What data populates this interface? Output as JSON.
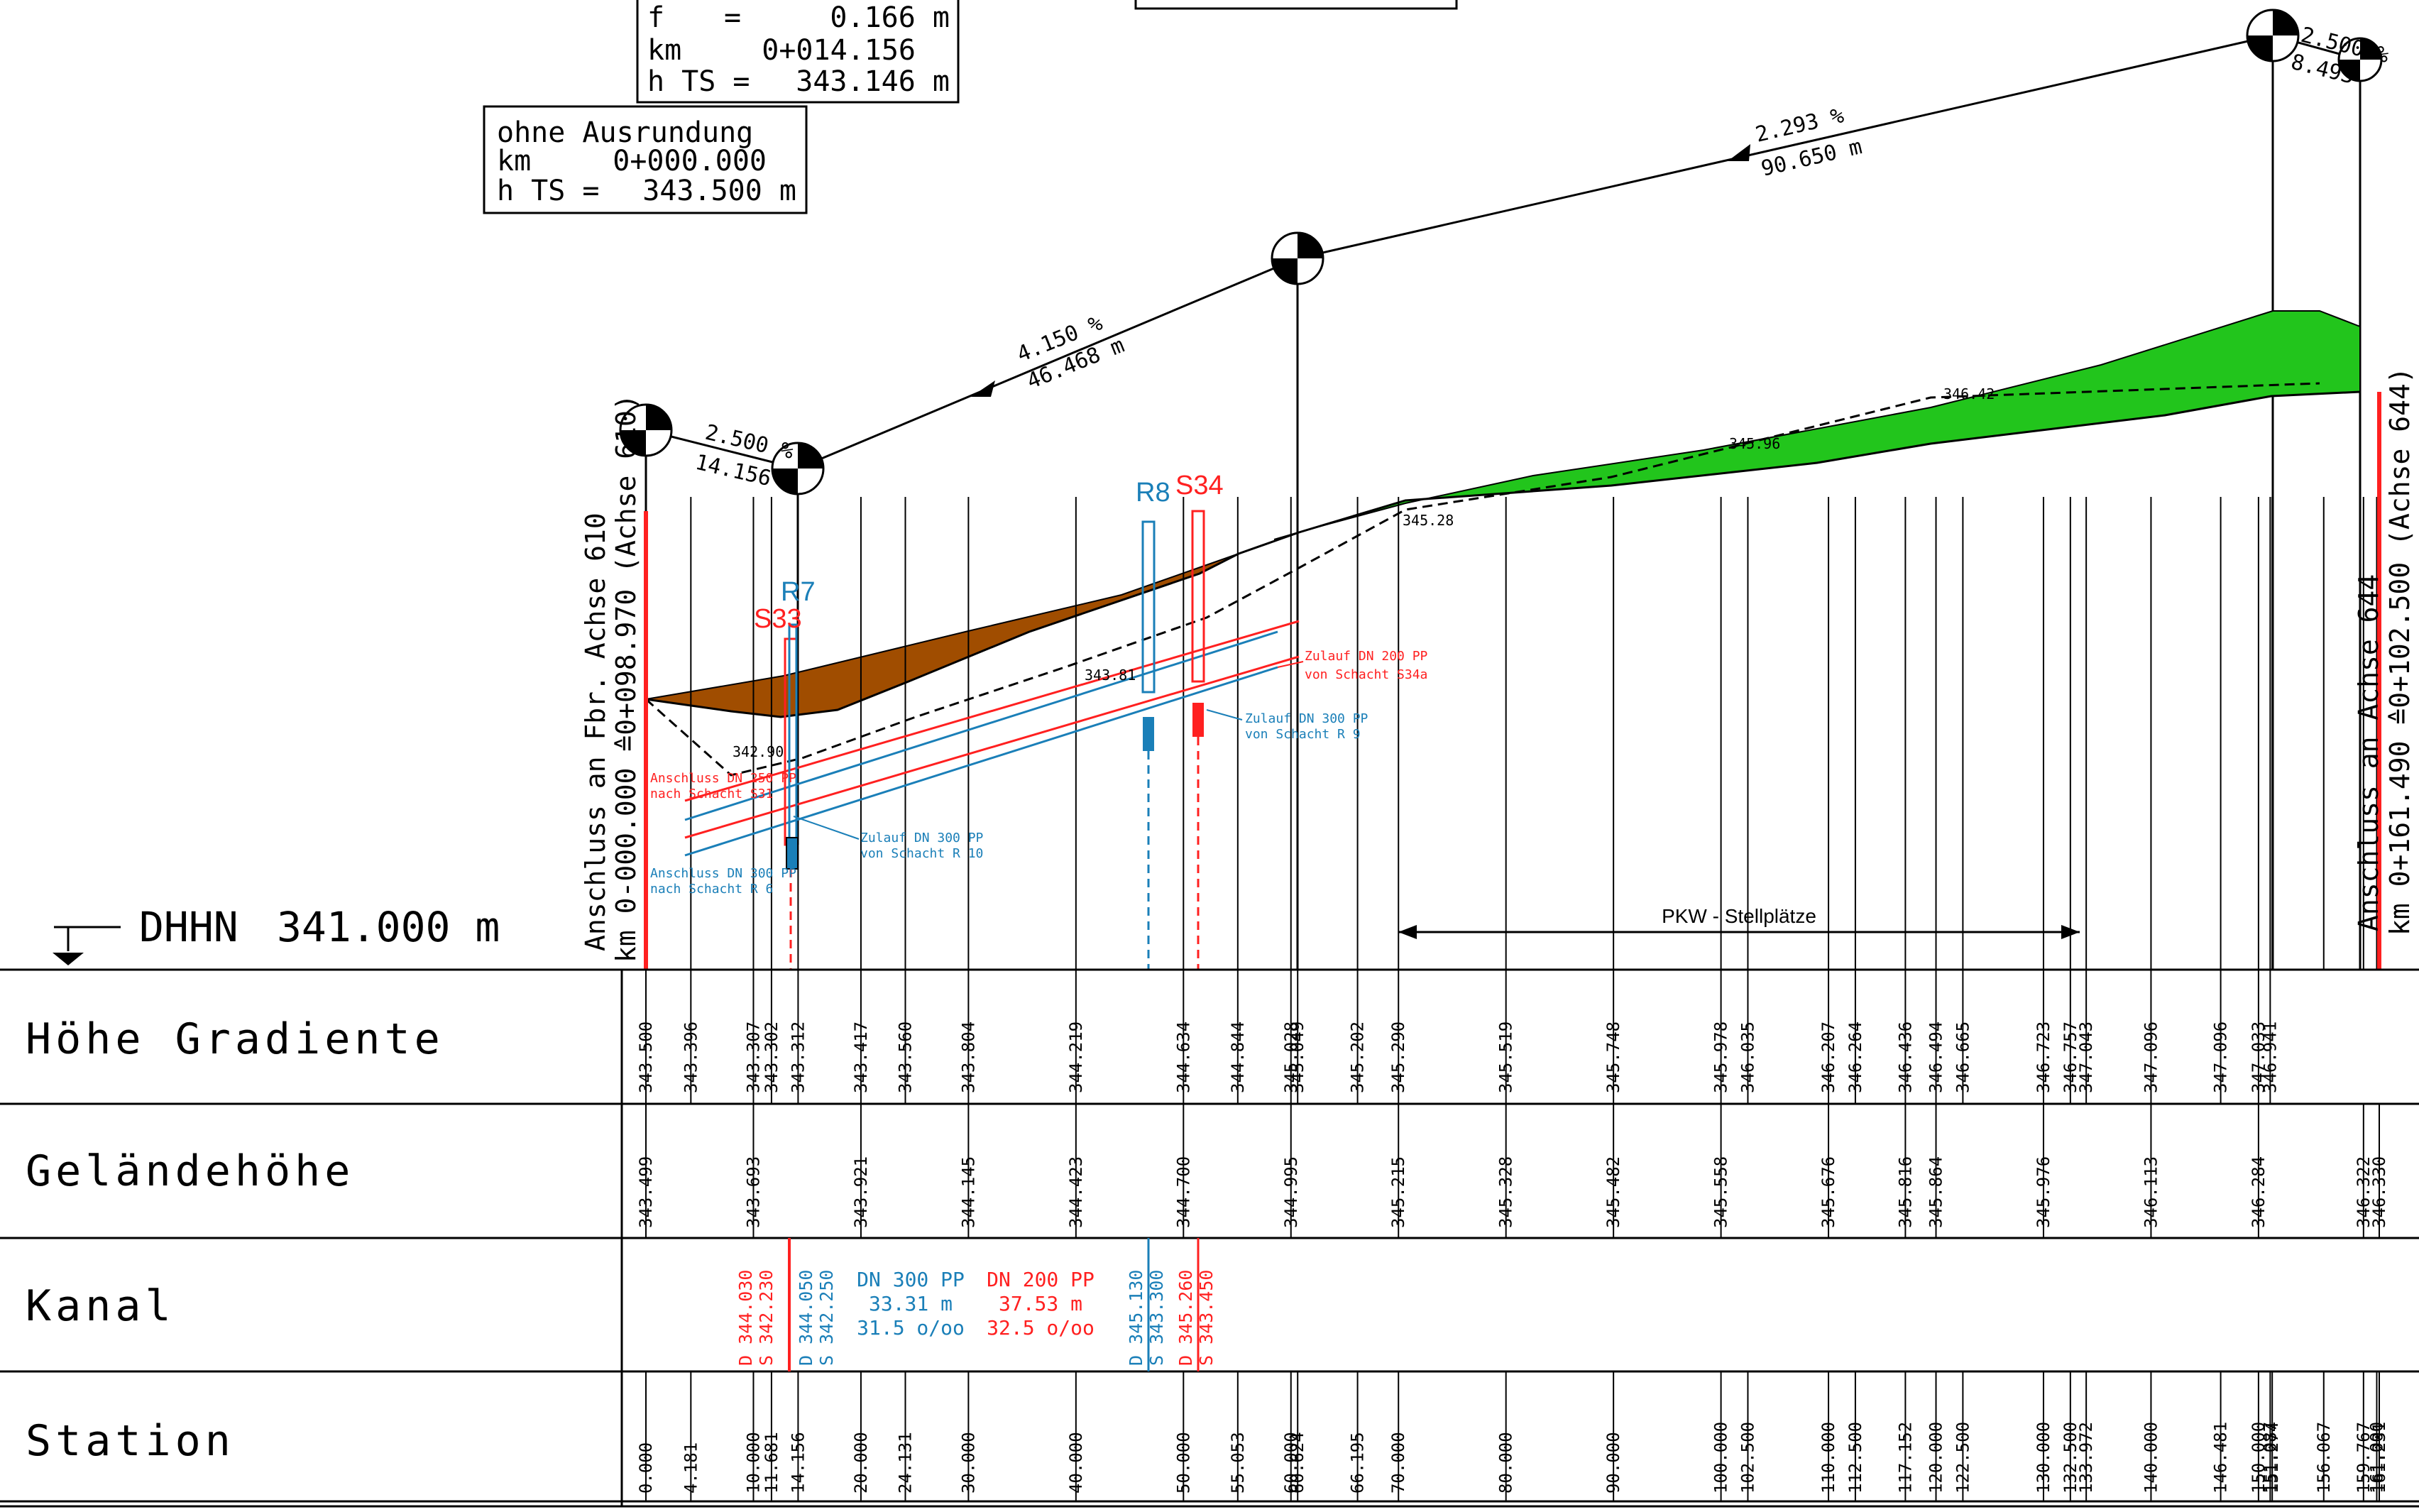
{
  "datum": {
    "label": "DHHN",
    "value": "341.000 m"
  },
  "box_top": {
    "f": "f",
    "eq": "=",
    "f_value": "0.166 m",
    "km_label": "km",
    "km_value": "0+014.156",
    "hts_label": "h TS =",
    "hts_value": "343.146 m"
  },
  "box_ohne": {
    "title": "ohne Ausrundung",
    "km_label": "km",
    "km_value": "0+000.000",
    "hts_label": "h TS =",
    "hts_value": "343.500 m"
  },
  "grade_labels": {
    "g1_pct": "2.500 %",
    "g1_len": "14.156 m",
    "g2_pct": "4.150 %",
    "g2_len": "46.468 m",
    "g3_pct": "2.293 %",
    "g3_len": "90.650 m",
    "g4_pct": "2.500 %",
    "g4_len": "8.493"
  },
  "shafts": {
    "r7": "R7",
    "s33": "S33",
    "r8": "R8",
    "s34": "S34"
  },
  "spot_heights": {
    "h1": "342.90",
    "h2": "343.81",
    "h3": "345.28",
    "h4": "345.96",
    "h5": "346.42"
  },
  "annotations": {
    "a1_l1": "Anschluss DN 250 PP",
    "a1_l2": "nach Schacht S31",
    "a2_l1": "Anschluss DN 300 PP",
    "a2_l2": "nach Schacht R 6",
    "a3_l1": "Zulauf DN 300 PP",
    "a3_l2": "von Schacht R 10",
    "a4_l1": "Zulauf DN 200 PP",
    "a4_l2": "von Schacht S34a",
    "a5_l1": "Zulauf DN 300 PP",
    "a5_l2": "von Schacht R 9"
  },
  "left_conn": {
    "l1": "Anschluss an Fbr. Achse 610",
    "l2": "km 0-000.000 ≙0+098.970 (Achse 610)"
  },
  "right_conn": {
    "l1": "Anschluss an Achse 644",
    "l2": "km 0+161.490 ≙0+102.500 (Achse 644)"
  },
  "parking_label": "PKW - Stellplätze",
  "row_labels": {
    "hoehe": "Höhe Gradiente",
    "gelaende": "Geländehöhe",
    "kanal": "Kanal",
    "station": "Station"
  },
  "kanal": {
    "c1_l1": "D 344.030",
    "c1_l2": "S 342.230",
    "c2_l1": "D 344.050",
    "c2_l2": "S 342.250",
    "c3_l1": "D 345.130",
    "c3_l2": "S 343.300",
    "c4_l1": "D 345.260",
    "c4_l2": "S 343.450",
    "p1_l1": "DN 300 PP",
    "p1_l2": "33.31 m",
    "p1_l3": "31.5 o/oo",
    "p2_l1": "DN 200 PP",
    "p2_l2": "37.53 m",
    "p2_l3": "32.5 o/oo"
  },
  "hoehe_values": [
    "343.500",
    "343.396",
    "343.307",
    "343.302",
    "343.312",
    "343.417",
    "343.560",
    "343.804",
    "344.219",
    "344.634",
    "344.844",
    "345.028",
    "345.049",
    "345.202",
    "345.290",
    "345.519",
    "345.748",
    "345.978",
    "346.035",
    "346.207",
    "346.264",
    "346.436",
    "346.494",
    "346.665",
    "346.723",
    "346.757",
    "347.043",
    "347.096",
    "347.096",
    "347.033",
    "346.941"
  ],
  "gelaende_values": [
    "343.499",
    "343.693",
    "343.921",
    "344.145",
    "344.423",
    "344.700",
    "344.995",
    "345.215",
    "345.328",
    "345.482",
    "345.558",
    "345.676",
    "345.816",
    "345.864",
    "345.976",
    "346.113",
    "346.284",
    "346.322",
    "346.330"
  ],
  "station_values": [
    "0.000",
    "4.181",
    "10.000",
    "11.681",
    "14.156",
    "20.000",
    "24.131",
    "30.000",
    "40.000",
    "50.000",
    "55.053",
    "60.000",
    "60.624",
    "66.195",
    "70.000",
    "80.000",
    "90.000",
    "100.000",
    "102.500",
    "110.000",
    "112.500",
    "117.152",
    "120.000",
    "122.500",
    "130.000",
    "132.500",
    "133.972",
    "140.000",
    "146.481",
    "150.000",
    "151.087",
    "151.274",
    "156.067",
    "159.767",
    "161.000",
    "161.231"
  ],
  "colors": {
    "fill_green": "#22c51c",
    "fill_brown": "#a04d00",
    "red": "#ff2020",
    "blue": "#1a7fb8",
    "black": "#000000"
  }
}
